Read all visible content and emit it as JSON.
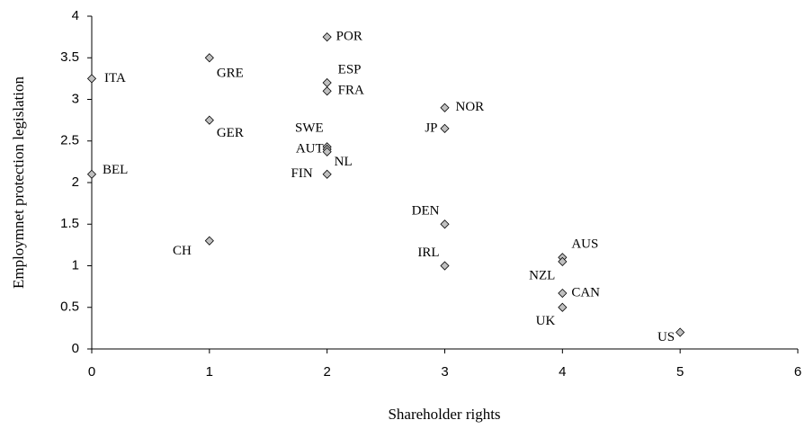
{
  "chart_data": {
    "type": "scatter",
    "xlabel": "Shareholder rights",
    "ylabel": "Employmnet protection legislation",
    "labels": [
      "ITA",
      "BEL",
      "GRE",
      "GER",
      "CH",
      "POR",
      "ESP",
      "FRA",
      "SWE",
      "AUT",
      "NL",
      "FIN",
      "NOR",
      "JP",
      "DEN",
      "IRL",
      "AUS",
      "NZL",
      "CAN",
      "UK",
      "US"
    ],
    "x": [
      0,
      0,
      1,
      1,
      1,
      2,
      2,
      2,
      2,
      2,
      2,
      2,
      3,
      3,
      3,
      3,
      4,
      4,
      4,
      4,
      5
    ],
    "y": [
      3.25,
      2.1,
      3.5,
      2.75,
      1.3,
      3.75,
      3.2,
      3.1,
      2.43,
      2.4,
      2.37,
      2.1,
      2.9,
      2.65,
      1.5,
      1.0,
      1.1,
      1.05,
      0.67,
      0.5,
      0.2
    ],
    "color": "#c0c0c0",
    "xlim": [
      0,
      6
    ],
    "xticks": [
      0,
      1,
      2,
      3,
      4,
      5,
      6
    ],
    "ylim": [
      0,
      4
    ],
    "yticks": [
      0,
      {
        "value": 0.5,
        "label": "0.5"
      },
      1,
      {
        "value": 1.5,
        "label": "1.5"
      },
      2,
      {
        "value": 2.5,
        "label": "2.5"
      },
      3,
      {
        "value": 3.5,
        "label": "3.5"
      },
      4
    ]
  }
}
